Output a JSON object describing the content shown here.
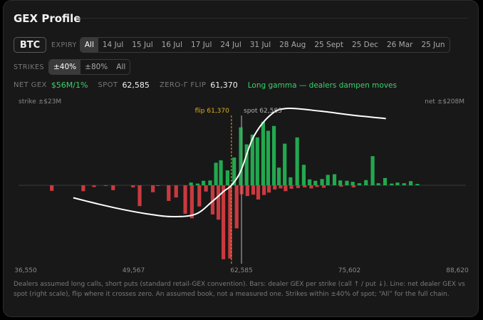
{
  "title": "GEX Profile",
  "asset": "BTC",
  "expiry": {
    "label": "EXPIRY",
    "options": [
      "All",
      "14 Jul",
      "15 Jul",
      "16 Jul",
      "17 Jul",
      "24 Jul",
      "31 Jul",
      "28 Aug",
      "25 Sept",
      "25 Dec",
      "26 Mar",
      "25 Jun"
    ],
    "selected": "All"
  },
  "strikes": {
    "label": "STRIKES",
    "options": [
      "±40%",
      "±80%",
      "All"
    ],
    "selected": "±40%"
  },
  "stats": {
    "net_gex_label": "NET GEX",
    "net_gex_value": "$56M/1%",
    "spot_label": "SPOT",
    "spot_value": "62,585",
    "flip_label": "ZERO-Γ FLIP",
    "flip_value": "61,370",
    "regime_note": "Long gamma — dealers dampen moves"
  },
  "colors": {
    "call": "#23a84f",
    "put": "#c93a3f",
    "line": "#ffffff",
    "flip": "#e0b020",
    "spot": "#8a8a8a"
  },
  "chart_data": {
    "type": "bar",
    "left_axis_label": "strike ±$23M",
    "right_axis_label": "net ±$208M",
    "flip_label": "flip 61,370",
    "spot_label": "spot 62,585",
    "flip_strike": 61370,
    "spot_strike": 62585,
    "xlim": [
      36550,
      88620
    ],
    "x_tick_values": [
      36550,
      49567,
      62585,
      75602,
      88620
    ],
    "x_tick_labels": [
      "36,550",
      "49,567",
      "62,585",
      "75,602",
      "88,620"
    ],
    "left_ylim": [
      -23,
      23
    ],
    "right_ylim": [
      -208,
      208
    ],
    "call_gex": [
      {
        "strike": 56500,
        "value": 0.8
      },
      {
        "strike": 57300,
        "value": 0.5
      },
      {
        "strike": 58000,
        "value": 1.3
      },
      {
        "strike": 58800,
        "value": 1.4
      },
      {
        "strike": 59500,
        "value": 6.5
      },
      {
        "strike": 60100,
        "value": 7.2
      },
      {
        "strike": 60900,
        "value": 4.3
      },
      {
        "strike": 61700,
        "value": 8.0
      },
      {
        "strike": 62500,
        "value": 16.7
      },
      {
        "strike": 63200,
        "value": 11.8
      },
      {
        "strike": 63900,
        "value": 14.6
      },
      {
        "strike": 64500,
        "value": 13.8
      },
      {
        "strike": 65200,
        "value": 18.3
      },
      {
        "strike": 65800,
        "value": 15.7
      },
      {
        "strike": 66500,
        "value": 17.1
      },
      {
        "strike": 67100,
        "value": 5.1
      },
      {
        "strike": 67800,
        "value": 12.0
      },
      {
        "strike": 68500,
        "value": 2.3
      },
      {
        "strike": 69300,
        "value": 13.8
      },
      {
        "strike": 70100,
        "value": 5.9
      },
      {
        "strike": 70800,
        "value": 1.7
      },
      {
        "strike": 71500,
        "value": 1.3
      },
      {
        "strike": 72300,
        "value": 1.8
      },
      {
        "strike": 73000,
        "value": 3.0
      },
      {
        "strike": 73800,
        "value": 3.2
      },
      {
        "strike": 74500,
        "value": 1.4
      },
      {
        "strike": 75300,
        "value": 1.3
      },
      {
        "strike": 76000,
        "value": 1.0
      },
      {
        "strike": 76800,
        "value": 0.6
      },
      {
        "strike": 77600,
        "value": 1.5
      },
      {
        "strike": 78400,
        "value": 8.4
      },
      {
        "strike": 79100,
        "value": 0.6
      },
      {
        "strike": 79900,
        "value": 2.1
      },
      {
        "strike": 80700,
        "value": 0.5
      },
      {
        "strike": 81400,
        "value": 0.8
      },
      {
        "strike": 82200,
        "value": 0.6
      },
      {
        "strike": 83000,
        "value": 1.2
      },
      {
        "strike": 83800,
        "value": 0.4
      }
    ],
    "put_gex": [
      {
        "strike": 39700,
        "value": -1.6
      },
      {
        "strike": 43500,
        "value": -1.7
      },
      {
        "strike": 44800,
        "value": -0.5
      },
      {
        "strike": 46200,
        "value": -0.2
      },
      {
        "strike": 47100,
        "value": -1.4
      },
      {
        "strike": 49500,
        "value": -0.6
      },
      {
        "strike": 50300,
        "value": -6.0
      },
      {
        "strike": 51900,
        "value": -2.0
      },
      {
        "strike": 52500,
        "value": -0.2
      },
      {
        "strike": 53800,
        "value": -4.5
      },
      {
        "strike": 54700,
        "value": -3.5
      },
      {
        "strike": 55800,
        "value": -8.2
      },
      {
        "strike": 56600,
        "value": -9.5
      },
      {
        "strike": 57500,
        "value": -6.1
      },
      {
        "strike": 58300,
        "value": -1.8
      },
      {
        "strike": 59100,
        "value": -8.4
      },
      {
        "strike": 59800,
        "value": -9.9
      },
      {
        "strike": 60400,
        "value": -21.3
      },
      {
        "strike": 61200,
        "value": -21.1
      },
      {
        "strike": 62000,
        "value": -12.4
      },
      {
        "strike": 62600,
        "value": -2.6
      },
      {
        "strike": 63300,
        "value": -3.1
      },
      {
        "strike": 64000,
        "value": -2.7
      },
      {
        "strike": 64600,
        "value": -4.1
      },
      {
        "strike": 65300,
        "value": -2.8
      },
      {
        "strike": 65900,
        "value": -2.1
      },
      {
        "strike": 66600,
        "value": -1.2
      },
      {
        "strike": 67300,
        "value": -0.9
      },
      {
        "strike": 67900,
        "value": -1.7
      },
      {
        "strike": 68600,
        "value": -1.0
      },
      {
        "strike": 69400,
        "value": -0.8
      },
      {
        "strike": 70200,
        "value": -0.6
      },
      {
        "strike": 71000,
        "value": -0.9
      },
      {
        "strike": 71700,
        "value": -0.5
      },
      {
        "strike": 72500,
        "value": -0.7
      },
      {
        "strike": 74600,
        "value": -0.4
      },
      {
        "strike": 76100,
        "value": -0.6
      }
    ],
    "net_gex_curve": [
      {
        "spot": 42300,
        "net": -33
      },
      {
        "spot": 45000,
        "net": -48
      },
      {
        "spot": 48000,
        "net": -63
      },
      {
        "spot": 51000,
        "net": -75
      },
      {
        "spot": 54000,
        "net": -83
      },
      {
        "spot": 57000,
        "net": -77
      },
      {
        "spot": 59000,
        "net": -44
      },
      {
        "spot": 60500,
        "net": -15
      },
      {
        "spot": 61370,
        "net": 0
      },
      {
        "spot": 62500,
        "net": 38
      },
      {
        "spot": 64000,
        "net": 127
      },
      {
        "spot": 66000,
        "net": 185
      },
      {
        "spot": 68000,
        "net": 204
      },
      {
        "spot": 72000,
        "net": 197
      },
      {
        "spot": 76000,
        "net": 186
      },
      {
        "spot": 80000,
        "net": 177
      }
    ]
  },
  "footnote": "Dealers assumed long calls, short puts (standard retail-GEX convention). Bars: dealer GEX per strike (call ↑ / put ↓). Line: net dealer GEX vs spot (right scale), flip where it crosses zero. An assumed book, not a measured one. Strikes within ±40% of spot; “All” for the full chain."
}
